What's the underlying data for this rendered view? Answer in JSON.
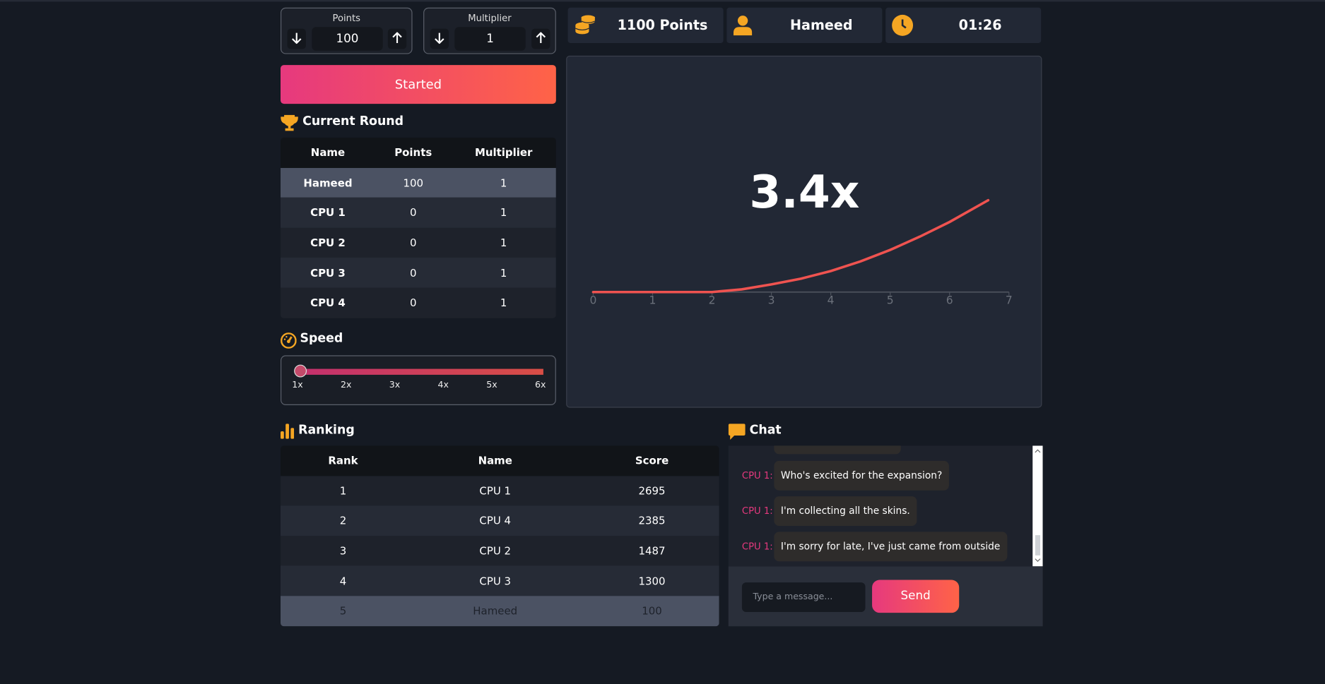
{
  "controls": {
    "points": {
      "label": "Points",
      "value": 100
    },
    "multiplier": {
      "label": "Multiplier",
      "value": 1
    }
  },
  "stats": {
    "points": "1100 Points",
    "player": "Hameed",
    "timer": "01:26"
  },
  "start_button": "Started",
  "current_round": {
    "title": "Current Round",
    "columns": [
      "Name",
      "Points",
      "Multiplier"
    ],
    "rows": [
      [
        "Hameed",
        100,
        1
      ],
      [
        "CPU 1",
        0,
        1
      ],
      [
        "CPU 2",
        0,
        1
      ],
      [
        "CPU 3",
        0,
        1
      ],
      [
        "CPU 4",
        0,
        1
      ]
    ]
  },
  "speed": {
    "title": "Speed",
    "labels": [
      "1x",
      "2x",
      "3x",
      "4x",
      "5x",
      "6x"
    ]
  },
  "chart_data": {
    "type": "line",
    "annotation": "3.4x",
    "x": [
      0,
      2,
      2.5,
      3,
      3.5,
      4,
      4.5,
      5,
      5.5,
      6,
      6.65
    ],
    "values": [
      1,
      1,
      1.07,
      1.2,
      1.35,
      1.55,
      1.8,
      2.1,
      2.45,
      2.83,
      3.4
    ],
    "color": "#ef5350",
    "xlim": [
      0,
      7
    ],
    "xticks": [
      0,
      1,
      2,
      3,
      4,
      5,
      6,
      7
    ],
    "ylim": [
      1,
      4
    ]
  },
  "ranking": {
    "title": "Ranking",
    "columns": [
      "Rank",
      "Name",
      "Score"
    ],
    "rows": [
      [
        1,
        "CPU 1",
        2695
      ],
      [
        2,
        "CPU 4",
        2385
      ],
      [
        3,
        "CPU 2",
        1487
      ],
      [
        4,
        "CPU 3",
        1300
      ],
      [
        5,
        "Hameed",
        100
      ]
    ]
  },
  "chat": {
    "title": "Chat",
    "messages": [
      {
        "sender": "CPU 1:",
        "text": "Who's excited for the expansion?"
      },
      {
        "sender": "CPU 1:",
        "text": "I'm collecting all the skins."
      },
      {
        "sender": "CPU 1:",
        "text": "I'm sorry for late, I've just came from outside"
      }
    ],
    "input_placeholder": "Type a message...",
    "send": "Send"
  }
}
